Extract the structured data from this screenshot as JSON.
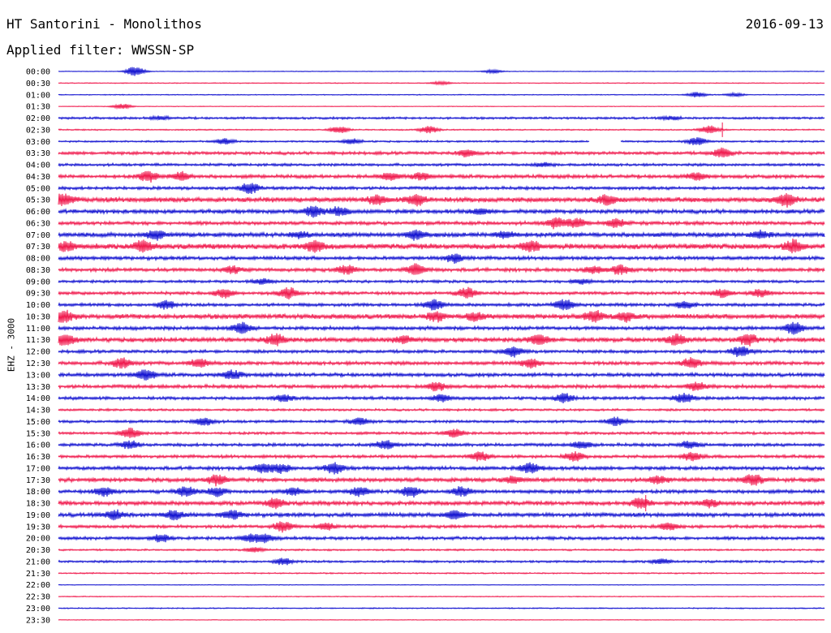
{
  "header": {
    "station": "HT Santorini - Monolithos",
    "date": "2016-09-13",
    "filter_text": "Applied filter: WWSSN-SP",
    "channel": "EHZ - 3000"
  },
  "colors": {
    "trace_even": "#1010d0",
    "trace_odd": "#f0184c",
    "background": "#ffffff",
    "text": "#000000"
  },
  "chart_data": {
    "type": "line",
    "title": "HT Santorini - Monolithos",
    "ylabel": "EHZ - 3000",
    "x_range_minutes": [
      0,
      30
    ],
    "row_labels": [
      "00:00",
      "00:30",
      "01:00",
      "01:30",
      "02:00",
      "02:30",
      "03:00",
      "03:30",
      "04:00",
      "04:30",
      "05:00",
      "05:30",
      "06:00",
      "06:30",
      "07:00",
      "07:30",
      "08:00",
      "08:30",
      "09:00",
      "09:30",
      "10:00",
      "10:30",
      "11:00",
      "11:30",
      "12:00",
      "12:30",
      "13:00",
      "13:30",
      "14:00",
      "14:30",
      "15:00",
      "15:30",
      "16:00",
      "16:30",
      "17:00",
      "17:30",
      "18:00",
      "18:30",
      "19:00",
      "19:30",
      "20:00",
      "20:30",
      "21:00",
      "21:30",
      "22:00",
      "22:30",
      "23:00",
      "23:30"
    ],
    "noise_level": [
      0.3,
      0.4,
      0.4,
      0.3,
      1.0,
      0.6,
      0.8,
      1.4,
      1.2,
      1.6,
      1.4,
      2.2,
      1.8,
      1.6,
      2.0,
      2.4,
      1.6,
      1.6,
      1.2,
      1.4,
      1.4,
      2.2,
      1.6,
      2.0,
      1.4,
      1.6,
      1.6,
      1.6,
      1.4,
      1.0,
      1.2,
      1.2,
      1.4,
      1.4,
      1.6,
      1.8,
      1.6,
      1.8,
      1.8,
      1.4,
      1.4,
      0.8,
      1.0,
      0.6,
      0.3,
      0.4,
      0.5,
      0.3
    ],
    "events": [
      [
        [
          3.0,
          6
        ],
        [
          17.0,
          2
        ]
      ],
      [
        [
          15.0,
          2
        ]
      ],
      [
        [
          25.0,
          3
        ],
        [
          26.5,
          2
        ]
      ],
      [
        [
          2.5,
          3
        ]
      ],
      [
        [
          4.0,
          2
        ],
        [
          24.0,
          2
        ]
      ],
      [
        [
          11.0,
          4
        ],
        [
          14.5,
          4
        ],
        [
          25.5,
          5
        ]
      ],
      [
        [
          6.5,
          3
        ],
        [
          11.5,
          3
        ],
        [
          25.0,
          5
        ]
      ],
      [
        [
          16.0,
          4
        ],
        [
          26.0,
          5
        ]
      ],
      [
        [
          19.0,
          2
        ]
      ],
      [
        [
          3.5,
          6
        ],
        [
          4.8,
          5
        ],
        [
          13.0,
          4
        ],
        [
          14.2,
          4
        ],
        [
          25.0,
          4
        ]
      ],
      [
        [
          7.5,
          6
        ]
      ],
      [
        [
          0.2,
          6
        ],
        [
          12.5,
          5
        ],
        [
          14.0,
          6
        ],
        [
          21.5,
          5
        ],
        [
          28.5,
          7
        ]
      ],
      [
        [
          10.0,
          6
        ],
        [
          11.0,
          5
        ],
        [
          16.5,
          3
        ]
      ],
      [
        [
          19.5,
          6
        ],
        [
          20.3,
          5
        ],
        [
          21.8,
          5
        ]
      ],
      [
        [
          3.8,
          5
        ],
        [
          9.5,
          3
        ],
        [
          14.0,
          5
        ],
        [
          17.5,
          4
        ],
        [
          27.5,
          4
        ]
      ],
      [
        [
          0.3,
          5
        ],
        [
          3.3,
          6
        ],
        [
          10.0,
          6
        ],
        [
          18.5,
          6
        ],
        [
          28.8,
          7
        ]
      ],
      [
        [
          15.5,
          5
        ]
      ],
      [
        [
          6.8,
          4
        ],
        [
          11.3,
          5
        ],
        [
          14.0,
          6
        ],
        [
          21.0,
          4
        ],
        [
          22.0,
          5
        ]
      ],
      [
        [
          8.0,
          3
        ],
        [
          20.5,
          3
        ]
      ],
      [
        [
          6.5,
          5
        ],
        [
          9.0,
          6
        ],
        [
          16.0,
          6
        ],
        [
          26.0,
          5
        ],
        [
          27.5,
          4
        ]
      ],
      [
        [
          4.2,
          5
        ],
        [
          14.7,
          6
        ],
        [
          19.8,
          6
        ],
        [
          24.5,
          4
        ]
      ],
      [
        [
          0.2,
          6
        ],
        [
          14.8,
          5
        ],
        [
          16.3,
          4
        ],
        [
          21.0,
          6
        ],
        [
          22.2,
          5
        ]
      ],
      [
        [
          7.2,
          6
        ],
        [
          28.8,
          7
        ]
      ],
      [
        [
          0.3,
          6
        ],
        [
          8.5,
          6
        ],
        [
          13.5,
          4
        ],
        [
          18.8,
          6
        ],
        [
          24.2,
          6
        ],
        [
          27.0,
          6
        ]
      ],
      [
        [
          17.8,
          6
        ],
        [
          26.7,
          6
        ]
      ],
      [
        [
          2.5,
          6
        ],
        [
          5.5,
          5
        ],
        [
          18.5,
          5
        ],
        [
          24.8,
          6
        ]
      ],
      [
        [
          3.4,
          6
        ],
        [
          6.8,
          5
        ]
      ],
      [
        [
          14.8,
          5
        ],
        [
          25.0,
          5
        ]
      ],
      [
        [
          8.8,
          4
        ],
        [
          15.0,
          4
        ],
        [
          19.8,
          5
        ],
        [
          24.5,
          5
        ]
      ],
      [],
      [
        [
          5.7,
          5
        ],
        [
          11.8,
          4
        ],
        [
          21.8,
          5
        ]
      ],
      [
        [
          2.8,
          6
        ],
        [
          15.5,
          5
        ]
      ],
      [
        [
          2.8,
          4
        ],
        [
          12.8,
          5
        ],
        [
          20.5,
          4
        ],
        [
          24.7,
          4
        ]
      ],
      [
        [
          16.5,
          5
        ],
        [
          20.2,
          5
        ],
        [
          24.8,
          5
        ]
      ],
      [
        [
          8.0,
          5
        ],
        [
          8.7,
          5
        ],
        [
          10.8,
          6
        ],
        [
          18.5,
          6
        ]
      ],
      [
        [
          6.2,
          6
        ],
        [
          17.8,
          4
        ],
        [
          23.5,
          4
        ],
        [
          27.2,
          6
        ]
      ],
      [
        [
          1.8,
          5
        ],
        [
          5.0,
          6
        ],
        [
          6.2,
          5
        ],
        [
          9.2,
          4
        ],
        [
          11.8,
          5
        ],
        [
          13.8,
          6
        ],
        [
          15.8,
          5
        ]
      ],
      [
        [
          8.5,
          5
        ],
        [
          22.8,
          6
        ],
        [
          25.5,
          4
        ]
      ],
      [
        [
          2.2,
          5
        ],
        [
          4.5,
          5
        ],
        [
          6.8,
          5
        ],
        [
          15.5,
          5
        ]
      ],
      [
        [
          8.8,
          6
        ],
        [
          10.5,
          4
        ],
        [
          23.9,
          4
        ]
      ],
      [
        [
          4.0,
          4
        ],
        [
          7.5,
          4
        ],
        [
          8.1,
          5
        ]
      ],
      [
        [
          7.7,
          3
        ]
      ],
      [
        [
          8.8,
          4
        ],
        [
          23.6,
          3
        ]
      ],
      [],
      [],
      [],
      [],
      []
    ],
    "gaps": [
      [
        6,
        20.8,
        22.0
      ]
    ],
    "spikes": [
      [
        5,
        26.0,
        9
      ],
      [
        37,
        23.0,
        10
      ]
    ]
  }
}
